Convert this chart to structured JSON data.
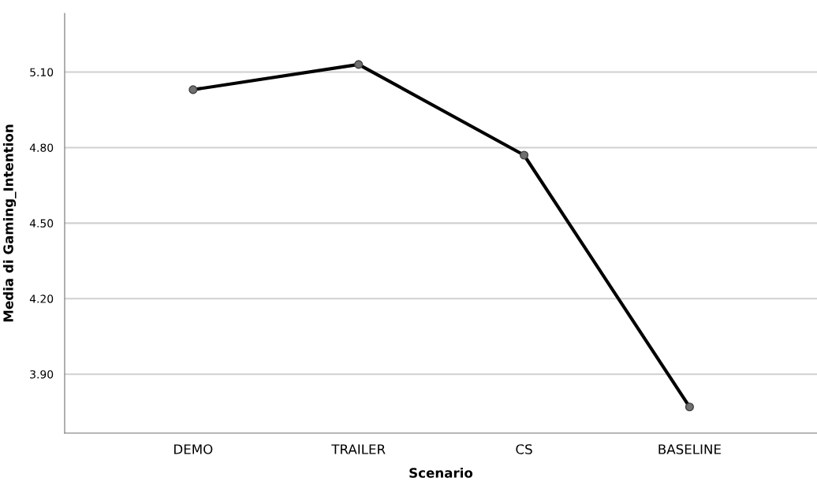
{
  "chart_data": {
    "type": "line",
    "xlabel": "Scenario",
    "ylabel": "Media di Gaming_Intention",
    "categories": [
      "DEMO",
      "TRAILER",
      "CS",
      "BASELINE"
    ],
    "series": [
      {
        "color": "#000000",
        "values": [
          5.03,
          5.13,
          4.77,
          3.77
        ]
      }
    ],
    "ylim": [
      3.666,
      5.333
    ],
    "yticks": [
      {
        "value": 3.9,
        "label": "3.90"
      },
      {
        "value": 4.2,
        "label": "4.20"
      },
      {
        "value": 4.5,
        "label": "4.50"
      },
      {
        "value": 4.8,
        "label": "4.80"
      },
      {
        "value": 5.1,
        "label": "5.10"
      }
    ],
    "grid": "y",
    "marker": "circle",
    "line_style": "solid"
  }
}
